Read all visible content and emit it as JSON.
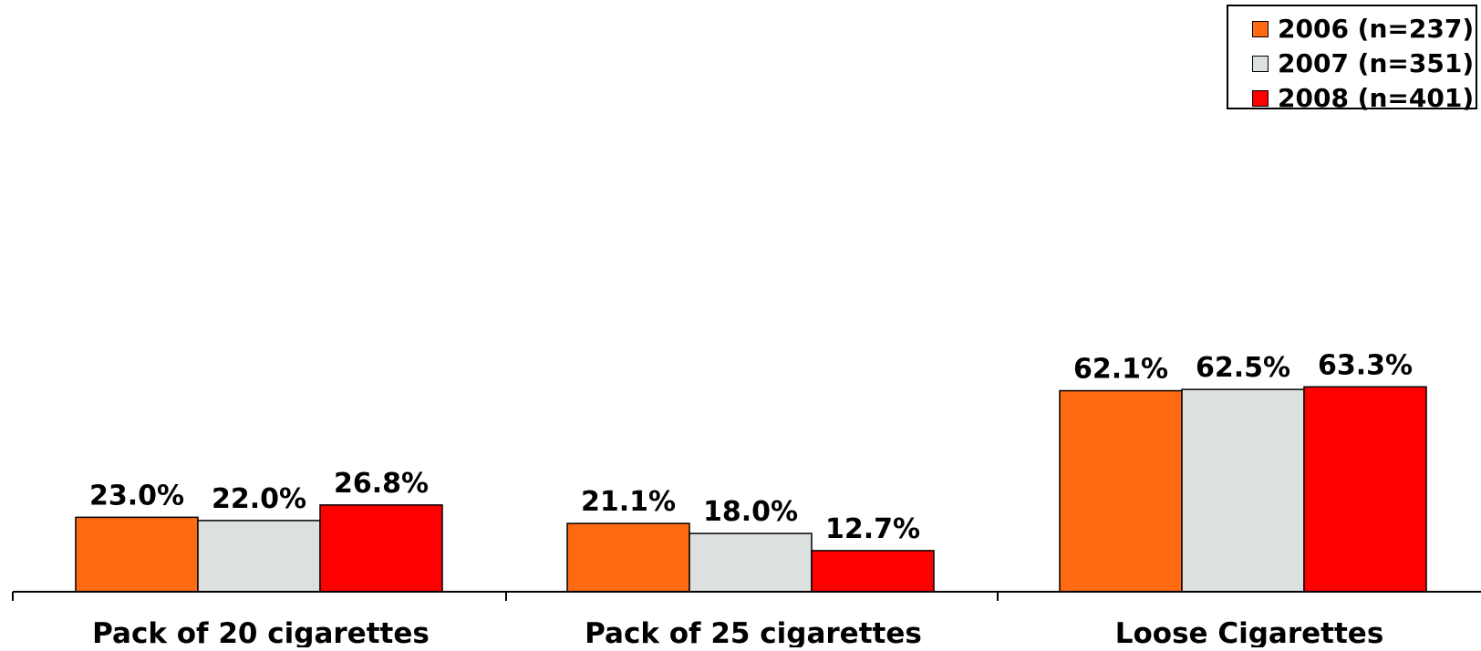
{
  "chart_data": {
    "type": "bar",
    "categories": [
      "Pack of 20 cigarettes",
      "Pack of 25 cigarettes",
      "Loose Cigarettes"
    ],
    "series": [
      {
        "name": "2006 (n=237)",
        "color": "#FF6A13",
        "values": [
          23.0,
          21.1,
          62.1
        ],
        "labels": [
          "23.0%",
          "21.1%",
          "62.1%"
        ]
      },
      {
        "name": "2007 (n=351)",
        "color": "#DCE0DF",
        "values": [
          22.0,
          18.0,
          62.5
        ],
        "labels": [
          "22.0%",
          "18.0%",
          "62.5%"
        ]
      },
      {
        "name": "2008 (n=401)",
        "color": "#FF0000",
        "values": [
          26.8,
          12.7,
          63.3
        ],
        "labels": [
          "26.8%",
          "12.7%",
          "63.3%"
        ]
      }
    ],
    "title": "",
    "xlabel": "",
    "ylabel": "",
    "ylim": [
      0,
      100
    ],
    "grid": false,
    "legend_position": "top-right"
  }
}
